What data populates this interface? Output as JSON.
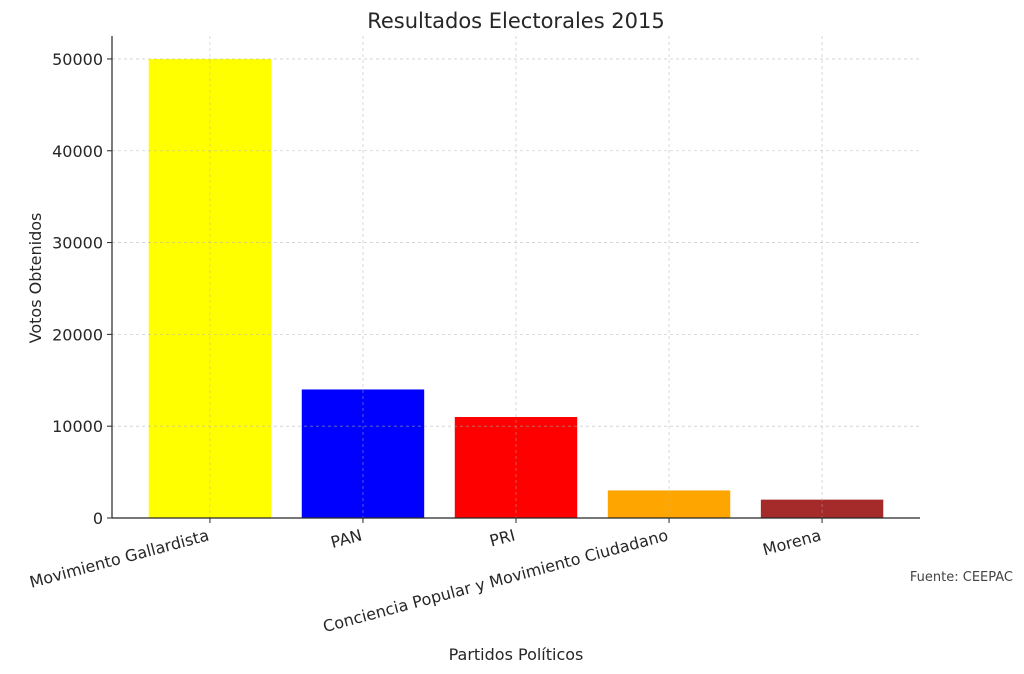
{
  "chart_data": {
    "type": "bar",
    "title": "Resultados Electorales 2015",
    "xlabel": "Partidos Políticos",
    "ylabel": "Votos Obtenidos",
    "categories": [
      "Movimiento Gallardista",
      "PAN",
      "PRI",
      "Conciencia Popular y Movimiento Ciudadano",
      "Morena"
    ],
    "values": [
      50000,
      14000,
      11000,
      3000,
      2000
    ],
    "colors": [
      "#ffff00",
      "#0000ff",
      "#ff0000",
      "#ffa500",
      "#a52a2a"
    ],
    "yticks": [
      0,
      10000,
      20000,
      30000,
      40000,
      50000
    ],
    "ylim": [
      0,
      52500
    ],
    "grid": true,
    "annotation": "Fuente: CEEPAC"
  }
}
